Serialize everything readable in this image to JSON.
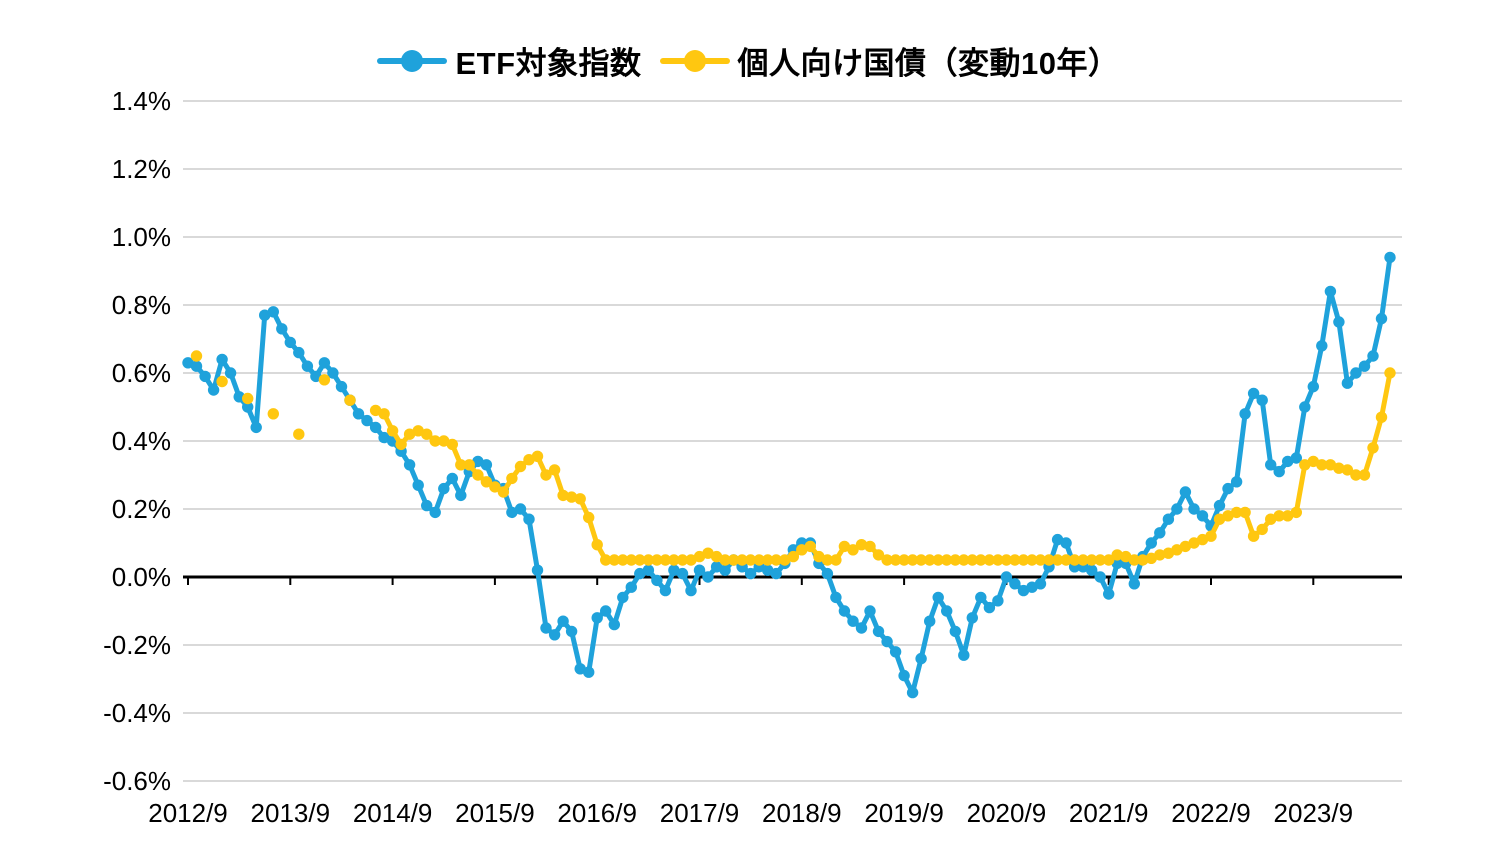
{
  "legend": {
    "items": [
      {
        "label": "ETF対象指数",
        "color": "#1FA2DB",
        "marker": "line-dot-marker"
      },
      {
        "label": "個人向け国債（変動10年）",
        "color": "#FFC710",
        "marker": "line-dot-marker"
      }
    ]
  },
  "colors": {
    "background": "#FFFFFF",
    "gridline": "#D9D9D9",
    "zero_line": "#000000",
    "axis_text": "#000000"
  },
  "chart_data": {
    "type": "line",
    "unit": "%",
    "x_start": "2012/9",
    "x_interval": "monthly",
    "grid": true,
    "legend_position": "top-center",
    "zero_line": true,
    "ylim": [
      -0.6,
      1.4
    ],
    "y_step": 0.2,
    "y_ticks": [
      {
        "value": 1.4,
        "label": "1.4%"
      },
      {
        "value": 1.2,
        "label": "1.2%"
      },
      {
        "value": 1.0,
        "label": "1.0%"
      },
      {
        "value": 0.8,
        "label": "0.8%"
      },
      {
        "value": 0.6,
        "label": "0.6%"
      },
      {
        "value": 0.4,
        "label": "0.4%"
      },
      {
        "value": 0.2,
        "label": "0.2%"
      },
      {
        "value": 0.0,
        "label": "0.0%"
      },
      {
        "value": -0.2,
        "label": "-0.2%"
      },
      {
        "value": -0.4,
        "label": "-0.4%"
      },
      {
        "value": -0.6,
        "label": "-0.6%"
      }
    ],
    "x_ticks": [
      {
        "month_index": 0,
        "label": "2012/9"
      },
      {
        "month_index": 12,
        "label": "2013/9"
      },
      {
        "month_index": 24,
        "label": "2014/9"
      },
      {
        "month_index": 36,
        "label": "2015/9"
      },
      {
        "month_index": 48,
        "label": "2016/9"
      },
      {
        "month_index": 60,
        "label": "2017/9"
      },
      {
        "month_index": 72,
        "label": "2018/9"
      },
      {
        "month_index": 84,
        "label": "2019/9"
      },
      {
        "month_index": 96,
        "label": "2020/9"
      },
      {
        "month_index": 108,
        "label": "2021/9"
      },
      {
        "month_index": 120,
        "label": "2022/9"
      },
      {
        "month_index": 132,
        "label": "2023/9"
      }
    ],
    "series": [
      {
        "name": "ETF対象指数",
        "color": "#1FA2DB",
        "values": [
          0.63,
          0.62,
          0.59,
          0.55,
          0.64,
          0.6,
          0.53,
          0.5,
          0.44,
          0.77,
          0.78,
          0.73,
          0.69,
          0.66,
          0.62,
          0.59,
          0.63,
          0.6,
          0.56,
          0.52,
          0.48,
          0.46,
          0.44,
          0.41,
          0.4,
          0.37,
          0.33,
          0.27,
          0.21,
          0.19,
          0.26,
          0.29,
          0.24,
          0.31,
          0.34,
          0.33,
          0.27,
          0.26,
          0.19,
          0.2,
          0.17,
          0.02,
          -0.15,
          -0.17,
          -0.13,
          -0.16,
          -0.27,
          -0.28,
          -0.12,
          -0.1,
          -0.14,
          -0.06,
          -0.03,
          0.01,
          0.02,
          -0.01,
          -0.04,
          0.02,
          0.01,
          -0.04,
          0.02,
          0.0,
          0.03,
          0.02,
          0.05,
          0.03,
          0.01,
          0.03,
          0.02,
          0.01,
          0.04,
          0.08,
          0.1,
          0.1,
          0.04,
          0.01,
          -0.06,
          -0.1,
          -0.13,
          -0.15,
          -0.1,
          -0.16,
          -0.19,
          -0.22,
          -0.29,
          -0.34,
          -0.24,
          -0.13,
          -0.06,
          -0.1,
          -0.16,
          -0.23,
          -0.12,
          -0.06,
          -0.09,
          -0.07,
          0.0,
          -0.02,
          -0.04,
          -0.03,
          -0.02,
          0.03,
          0.11,
          0.1,
          0.03,
          0.03,
          0.02,
          0.0,
          -0.05,
          0.04,
          0.04,
          -0.02,
          0.06,
          0.1,
          0.13,
          0.17,
          0.2,
          0.25,
          0.2,
          0.18,
          0.15,
          0.21,
          0.26,
          0.28,
          0.48,
          0.54,
          0.52,
          0.33,
          0.31,
          0.34,
          0.35,
          0.5,
          0.56,
          0.68,
          0.84,
          0.75,
          0.57,
          0.6,
          0.62,
          0.65,
          0.76,
          0.94
        ]
      },
      {
        "name": "個人向け国債（変動10年）",
        "color": "#FFC710",
        "values": [
          null,
          0.65,
          null,
          null,
          0.575,
          null,
          null,
          0.525,
          null,
          null,
          0.48,
          null,
          null,
          0.42,
          null,
          null,
          0.58,
          null,
          null,
          0.52,
          null,
          null,
          0.49,
          0.48,
          0.43,
          0.39,
          0.42,
          0.43,
          0.42,
          0.4,
          0.4,
          0.39,
          0.33,
          0.33,
          0.3,
          0.28,
          0.265,
          0.25,
          0.29,
          0.325,
          0.345,
          0.355,
          0.3,
          0.315,
          0.24,
          0.235,
          0.23,
          0.175,
          0.095,
          0.05,
          0.05,
          0.05,
          0.05,
          0.05,
          0.05,
          0.05,
          0.05,
          0.05,
          0.05,
          0.05,
          0.06,
          0.07,
          0.06,
          0.05,
          0.05,
          0.05,
          0.05,
          0.05,
          0.05,
          0.05,
          0.05,
          0.06,
          0.08,
          0.09,
          0.06,
          0.05,
          0.05,
          0.09,
          0.08,
          0.095,
          0.09,
          0.065,
          0.05,
          0.05,
          0.05,
          0.05,
          0.05,
          0.05,
          0.05,
          0.05,
          0.05,
          0.05,
          0.05,
          0.05,
          0.05,
          0.05,
          0.05,
          0.05,
          0.05,
          0.05,
          0.05,
          0.05,
          0.05,
          0.05,
          0.05,
          0.05,
          0.05,
          0.05,
          0.05,
          0.065,
          0.06,
          0.05,
          0.05,
          0.055,
          0.065,
          0.07,
          0.08,
          0.09,
          0.1,
          0.11,
          0.12,
          0.17,
          0.18,
          0.19,
          0.19,
          0.12,
          0.14,
          0.17,
          0.18,
          0.18,
          0.19,
          0.33,
          0.34,
          0.33,
          0.33,
          0.32,
          0.315,
          0.3,
          0.3,
          0.38,
          0.47,
          0.6
        ]
      }
    ]
  }
}
